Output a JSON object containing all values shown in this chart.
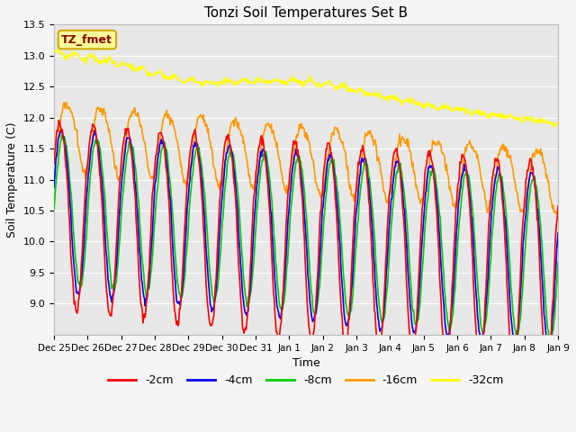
{
  "title": "Tonzi Soil Temperatures Set B",
  "xlabel": "Time",
  "ylabel": "Soil Temperature (C)",
  "ylim": [
    8.5,
    13.5
  ],
  "yticks": [
    9.0,
    9.5,
    10.0,
    10.5,
    11.0,
    11.5,
    12.0,
    12.5,
    13.0,
    13.5
  ],
  "colors": {
    "-2cm": "#ff0000",
    "-4cm": "#0000ff",
    "-8cm": "#00cc00",
    "-16cm": "#ff9900",
    "-32cm": "#ffff00"
  },
  "label_box_text": "TZ_fmet",
  "label_box_color": "#ffff99",
  "label_box_text_color": "#880000",
  "bg_color": "#e8e8e8",
  "grid_color": "#ffffff",
  "xtick_labels": [
    "Dec 25",
    "Dec 26",
    "Dec 27",
    "Dec 28",
    "Dec 29",
    "Dec 30",
    "Dec 31",
    "Jan 1",
    "Jan 2",
    "Jan 3",
    "Jan 4",
    "Jan 5",
    "Jan 6",
    "Jan 7",
    "Jan 8",
    "Jan 9"
  ],
  "legend_labels": [
    "-2cm",
    "-4cm",
    "-8cm",
    "-16cm",
    "-32cm"
  ]
}
